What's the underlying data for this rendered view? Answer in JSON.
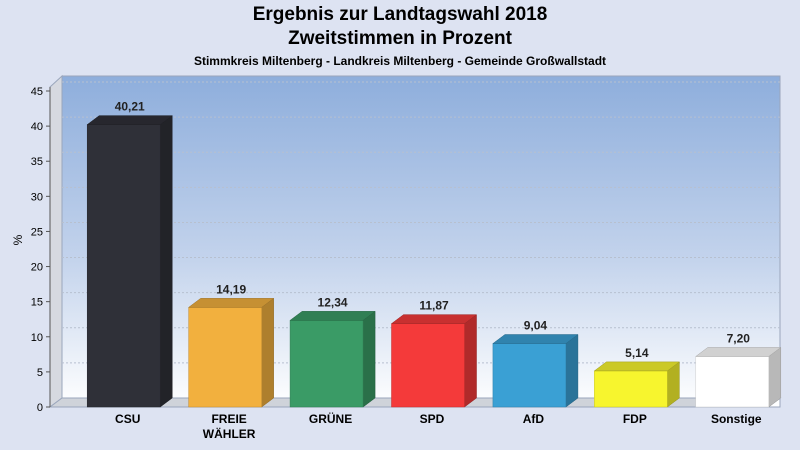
{
  "header": {
    "title_line1": "Ergebnis zur Landtagswahl 2018",
    "title_line2": "Zweitstimmen in Prozent",
    "subtitle": "Stimmkreis Miltenberg - Landkreis Miltenberg - Gemeinde Großwallstadt"
  },
  "chart_data": {
    "type": "bar",
    "title": "Ergebnis zur Landtagswahl 2018",
    "subtitle": "Zweitstimmen in Prozent",
    "ylabel": "%",
    "xlabel": "",
    "ylim": [
      0,
      45
    ],
    "yticks": [
      0,
      5,
      10,
      15,
      20,
      25,
      30,
      35,
      40,
      45
    ],
    "grid": true,
    "categories": [
      "CSU",
      "FREIE\nWÄHLER",
      "GRÜNE",
      "SPD",
      "AfD",
      "FDP",
      "Sonstige"
    ],
    "values": [
      40.21,
      14.19,
      12.34,
      11.87,
      9.04,
      5.14,
      7.2
    ],
    "value_labels": [
      "40,21",
      "14,19",
      "12,34",
      "11,87",
      "9,04",
      "5,14",
      "7,20"
    ],
    "colors": [
      "#2f3038",
      "#f2b03e",
      "#3a9b66",
      "#f43a3a",
      "#3aa0d4",
      "#f7f52e",
      "#ffffff"
    ]
  }
}
